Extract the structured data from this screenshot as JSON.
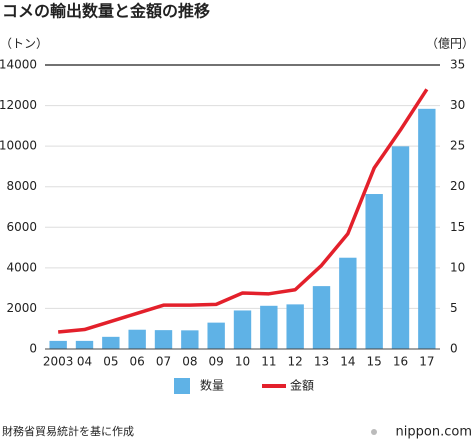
{
  "chart_data": {
    "type": "bar",
    "title": "コメの輸出数量と金額の推移",
    "ylabel": "（トン）",
    "y2label": "（億円）",
    "categories": [
      "2003",
      "04",
      "05",
      "06",
      "07",
      "08",
      "09",
      "10",
      "11",
      "12",
      "13",
      "14",
      "15",
      "16",
      "17"
    ],
    "series": [
      {
        "name": "数量",
        "color": "#5fb2e6",
        "values": [
          400,
          400,
          600,
          950,
          930,
          920,
          1300,
          1900,
          2130,
          2200,
          3100,
          4500,
          7640,
          9990,
          11840
        ]
      },
      {
        "name": "金額",
        "color": "#e3202b",
        "type": "line",
        "axis": "y2",
        "values": [
          2.1,
          2.4,
          3.4,
          4.4,
          5.4,
          5.4,
          5.5,
          6.9,
          6.8,
          7.3,
          10.3,
          14.2,
          22.3,
          27.0,
          32.0
        ]
      }
    ],
    "ylim": [
      0,
      14000
    ],
    "yticks": [
      0,
      2000,
      4000,
      6000,
      8000,
      10000,
      12000,
      14000
    ],
    "y2lim": [
      0,
      35
    ],
    "y2ticks": [
      0,
      5,
      10,
      15,
      20,
      25,
      30,
      35
    ],
    "grid": true,
    "legend": "bottom",
    "source": "財務省貿易統計を基に作成",
    "credit": "nippon.com"
  }
}
